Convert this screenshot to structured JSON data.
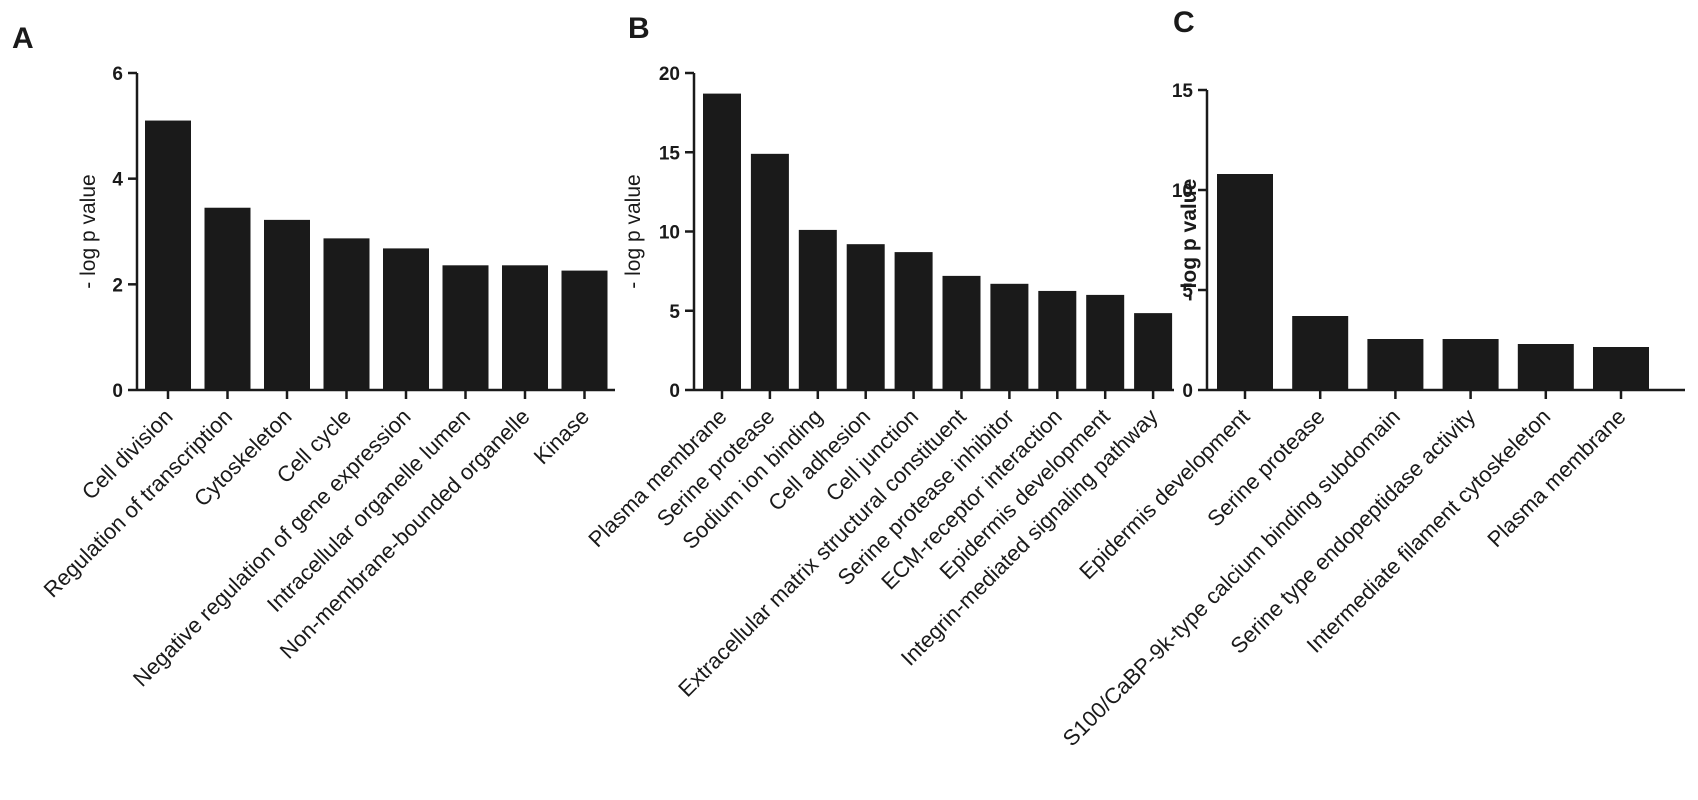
{
  "figure": {
    "panels": [
      "A",
      "B",
      "C"
    ]
  },
  "chart_data": [
    {
      "type": "bar",
      "panel": "A",
      "ylabel": "- log p value",
      "ylim": [
        0,
        6
      ],
      "yticks": [
        0,
        2,
        4,
        6
      ],
      "categories": [
        "Cell division",
        "Regulation of transcription",
        "Cytoskeleton",
        "Cell cycle",
        "Negative regulation of gene expression",
        "Intracellular organelle lumen",
        "Non-membrane-bounded organelle",
        "Kinase"
      ],
      "values": [
        5.1,
        3.45,
        3.22,
        2.87,
        2.68,
        2.36,
        2.36,
        2.26
      ],
      "grid": false
    },
    {
      "type": "bar",
      "panel": "B",
      "ylabel": "- log p value",
      "ylim": [
        0,
        20
      ],
      "yticks": [
        0,
        5,
        10,
        15,
        20
      ],
      "categories": [
        "Plasma membrane",
        "Serine protease",
        "Sodium ion binding",
        "Cell adhesion",
        "Cell junction",
        "Extracellular matrix structural constituent",
        "Serine protease inhibitor",
        "ECM-receptor interaction",
        "Epidermis development",
        "Integrin-mediated signaling pathway"
      ],
      "values": [
        18.7,
        14.9,
        10.1,
        9.2,
        8.7,
        7.2,
        6.7,
        6.25,
        6.0,
        4.85
      ],
      "grid": false
    },
    {
      "type": "bar",
      "panel": "C",
      "ylabel": "- log p value",
      "ylim": [
        0,
        15
      ],
      "yticks": [
        0,
        5,
        10,
        15
      ],
      "categories": [
        "Epidermis development",
        "Serine protease",
        "S100/CaBP-9k-type calcium binding subdomain",
        "Serine type endopeptidase activity",
        "Intermediate filament cytoskeleton",
        "Plasma membrane"
      ],
      "values": [
        10.8,
        3.7,
        2.55,
        2.55,
        2.3,
        2.15
      ],
      "grid": false
    }
  ]
}
